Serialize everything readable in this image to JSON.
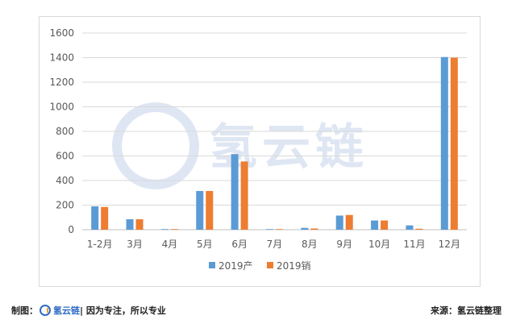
{
  "colors": {
    "production": "#5b9bd5",
    "sales": "#ed7d31",
    "grid": "#d9d9d9",
    "axis_text": "#595959",
    "watermark": "#dfe6f3",
    "brand": "#2e6bc6"
  },
  "watermark": {
    "text": "氢云链"
  },
  "chart_data": {
    "type": "bar",
    "categories": [
      "1-2月",
      "3月",
      "4月",
      "5月",
      "6月",
      "7月",
      "8月",
      "9月",
      "10月",
      "11月",
      "12月"
    ],
    "series": [
      {
        "name": "2019产",
        "values": [
          190,
          85,
          5,
          315,
          615,
          5,
          15,
          115,
          75,
          35,
          1405
        ]
      },
      {
        "name": "2019销",
        "values": [
          185,
          85,
          5,
          315,
          555,
          5,
          10,
          120,
          75,
          8,
          1400
        ]
      }
    ],
    "ylim": [
      0,
      1600
    ],
    "yticks": [
      "0",
      "200",
      "400",
      "600",
      "800",
      "1000",
      "1200",
      "1400",
      "1600"
    ],
    "grid": true,
    "legend_position": "bottom"
  },
  "footer": {
    "left_prefix": "制图：",
    "left_brand": "氢云链",
    "left_slogan": "| 因为专注，所以专业",
    "right_text": "来源：氢云链整理"
  }
}
